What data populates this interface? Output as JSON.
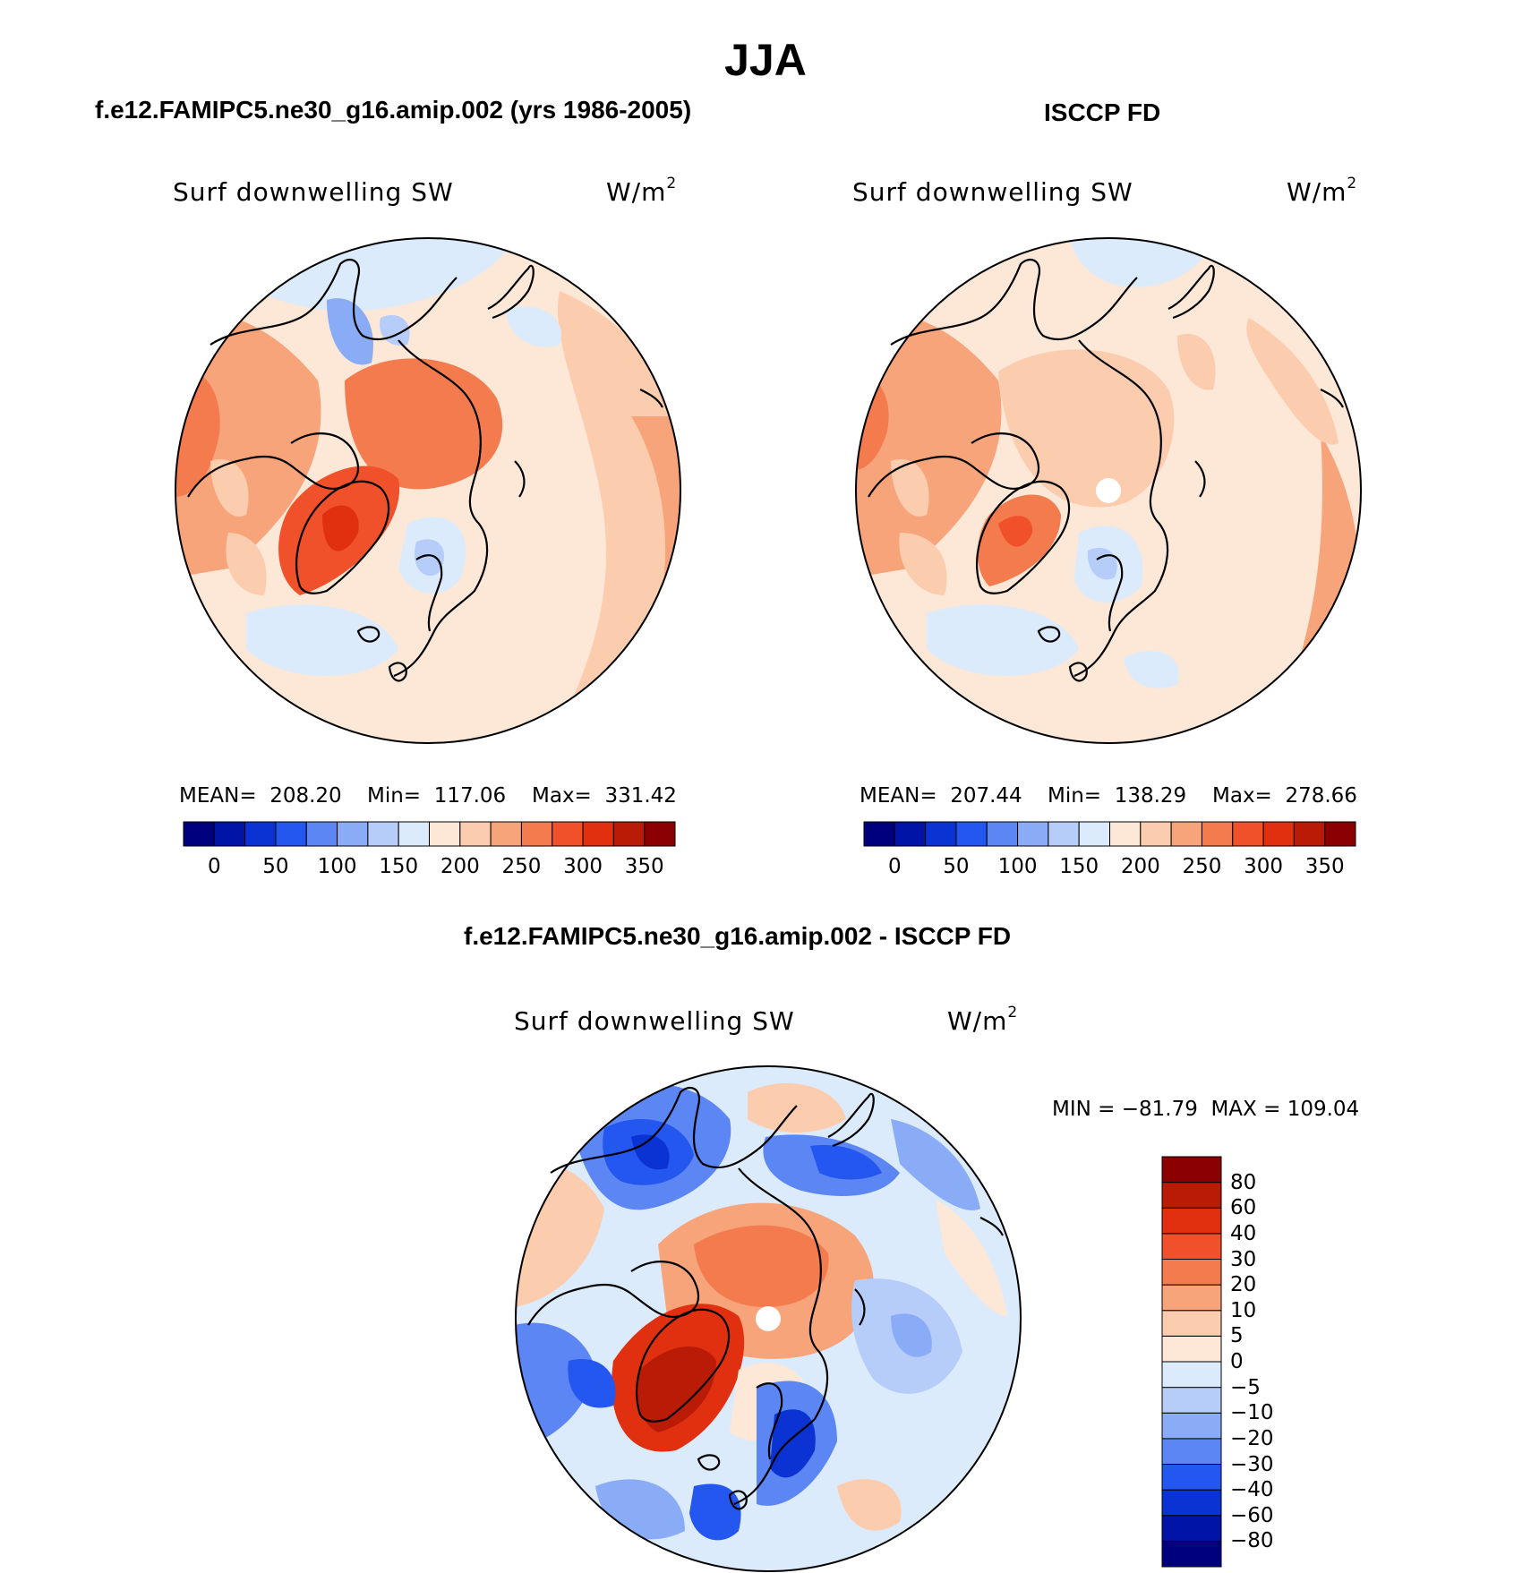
{
  "title": "JJA",
  "panels": {
    "model": {
      "title": "f.e12.FAMIPC5.ne30_g16.amip.002 (yrs 1986-2005)",
      "variable": "Surf downwelling SW",
      "units": "W/m",
      "units_exp": "2",
      "mean_text": "MEAN=  208.20",
      "min_text": "Min=  117.06",
      "max_text": "Max=  331.42"
    },
    "obs": {
      "title": "ISCCP FD",
      "variable": "Surf downwelling SW",
      "units": "W/m",
      "units_exp": "2",
      "mean_text": "MEAN=  207.44",
      "min_text": "Min=  138.29",
      "max_text": "Max=  278.66"
    },
    "diff": {
      "title": "f.e12.FAMIPC5.ne30_g16.amip.002 - ISCCP FD",
      "variable": "Surf downwelling SW",
      "units": "W/m",
      "units_exp": "2",
      "minmax_text": "MIN = −81.79  MAX = 109.04"
    }
  },
  "colorbars": {
    "abs": {
      "colors": [
        "#00007f",
        "#0014a8",
        "#0b33d4",
        "#2456f0",
        "#5b86f4",
        "#8aacf7",
        "#b6cdf9",
        "#dcebfc",
        "#fde7d6",
        "#fbccae",
        "#f7a47a",
        "#f37b4e",
        "#f0502a",
        "#e03010",
        "#b91b06",
        "#8b0000"
      ],
      "ticks": [
        "0",
        "50",
        "100",
        "150",
        "200",
        "250",
        "300",
        "350"
      ]
    },
    "diff": {
      "colors": [
        "#00007f",
        "#0014a8",
        "#0b33d4",
        "#2456f0",
        "#5b86f4",
        "#8aacf7",
        "#b6cdf9",
        "#dcebfc",
        "#fde7d6",
        "#fbccae",
        "#f7a47a",
        "#f37b4e",
        "#f0502a",
        "#e03010",
        "#b91b06",
        "#8b0000"
      ],
      "ticks": [
        "−80",
        "−60",
        "−40",
        "−30",
        "−20",
        "−10",
        "−5",
        "0",
        "5",
        "10",
        "20",
        "30",
        "40",
        "60",
        "80"
      ]
    }
  }
}
